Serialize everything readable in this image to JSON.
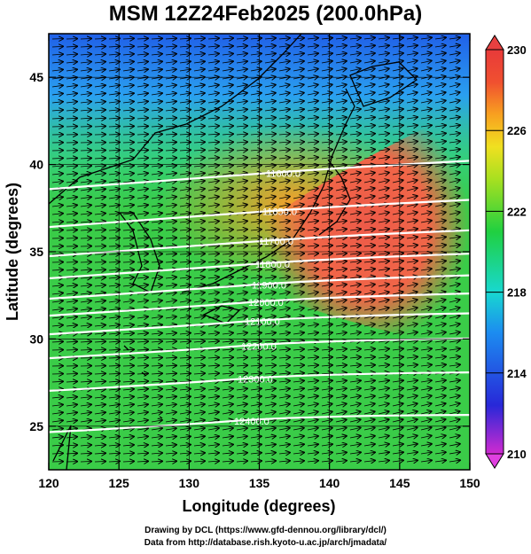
{
  "title": "MSM 12Z24Feb2025 (200.0hPa)",
  "map": {
    "xlabel": "Longitude (degrees)",
    "ylabel": "Latitude  (degrees)",
    "lon_range": [
      120,
      150
    ],
    "lat_range": [
      22.5,
      47.5
    ],
    "lon_ticks": [
      "120",
      "125",
      "130",
      "135",
      "140",
      "145",
      "150"
    ],
    "lat_ticks": [
      "25",
      "30",
      "35",
      "40",
      "45"
    ],
    "colorbar": {
      "min": 210,
      "max": 230,
      "ticks": [
        "210",
        "214",
        "218",
        "222",
        "226",
        "230"
      ]
    },
    "contours": [
      {
        "label": "11600.0",
        "lat_at_label": 39.5
      },
      {
        "label": "11650.0",
        "lat_at_label": 37.3
      },
      {
        "label": "11700.0",
        "lat_at_label": 35.6
      },
      {
        "label": "11800.0",
        "lat_at_label": 34.3
      },
      {
        "label": "11900.0",
        "lat_at_label": 33.1
      },
      {
        "label": "12000.0",
        "lat_at_label": 32.1
      },
      {
        "label": "12100.0",
        "lat_at_label": 31.0
      },
      {
        "label": "12200.0",
        "lat_at_label": 29.6
      },
      {
        "label": "12300.0",
        "lat_at_label": 27.7
      },
      {
        "label": "12400.0",
        "lat_at_label": 25.3
      }
    ]
  },
  "footer": {
    "line1": "Drawing by DCL (https://www.gfd-dennou.org/library/dcl/)",
    "line2": "Data from http://database.rish.kyoto-u.ac.jp/arch/jmadata/"
  }
}
